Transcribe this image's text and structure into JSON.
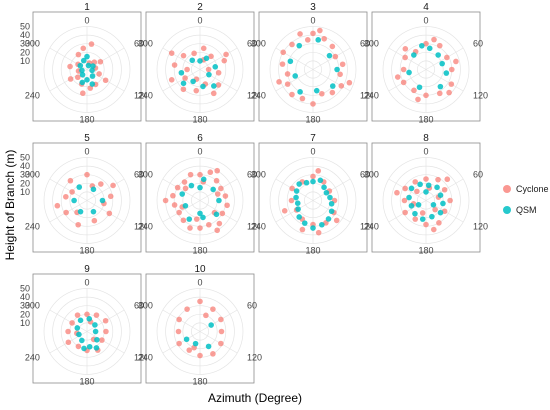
{
  "chart_data": {
    "type": "scatter",
    "coordinate_system": "polar",
    "xlabel": "Azimuth (Degree)",
    "ylabel": "Height of Branch (m)",
    "angle_ticks": [
      "0",
      "60",
      "120",
      "180",
      "240",
      "300"
    ],
    "radial_ticks": [
      "10",
      "20",
      "30",
      "40",
      "50"
    ],
    "radial_range": [
      0,
      50
    ],
    "legend": [
      {
        "name": "Cyclone",
        "color": "#F8766D"
      },
      {
        "name": "QSM",
        "color": "#00BFC4"
      }
    ],
    "panels": [
      {
        "label": "1",
        "cyclone": [
          [
            20,
            8
          ],
          [
            45,
            12
          ],
          [
            80,
            10
          ],
          [
            110,
            15
          ],
          [
            150,
            20
          ],
          [
            170,
            22
          ],
          [
            200,
            18
          ],
          [
            230,
            14
          ],
          [
            260,
            10
          ],
          [
            300,
            12
          ],
          [
            330,
            20
          ],
          [
            350,
            25
          ],
          [
            10,
            30
          ],
          [
            120,
            25
          ],
          [
            190,
            28
          ],
          [
            240,
            22
          ],
          [
            60,
            18
          ],
          [
            280,
            20
          ]
        ],
        "qsm": [
          [
            20,
            5
          ],
          [
            60,
            8
          ],
          [
            100,
            6
          ],
          [
            140,
            10
          ],
          [
            180,
            12
          ],
          [
            220,
            8
          ],
          [
            260,
            6
          ],
          [
            300,
            9
          ],
          [
            340,
            11
          ],
          [
            0,
            15
          ],
          [
            160,
            18
          ],
          [
            200,
            16
          ]
        ]
      },
      {
        "label": "2",
        "cyclone": [
          [
            10,
            25
          ],
          [
            40,
            20
          ],
          [
            70,
            30
          ],
          [
            100,
            22
          ],
          [
            130,
            28
          ],
          [
            160,
            18
          ],
          [
            190,
            25
          ],
          [
            220,
            30
          ],
          [
            250,
            35
          ],
          [
            280,
            30
          ],
          [
            310,
            25
          ],
          [
            340,
            20
          ],
          [
            20,
            12
          ],
          [
            90,
            10
          ],
          [
            200,
            12
          ],
          [
            270,
            15
          ],
          [
            60,
            35
          ],
          [
            300,
            38
          ],
          [
            150,
            32
          ],
          [
            240,
            20
          ]
        ],
        "qsm": [
          [
            30,
            15
          ],
          [
            80,
            18
          ],
          [
            120,
            12
          ],
          [
            170,
            20
          ],
          [
            210,
            16
          ],
          [
            260,
            22
          ],
          [
            320,
            14
          ],
          [
            0,
            10
          ],
          [
            140,
            25
          ],
          [
            230,
            25
          ]
        ]
      },
      {
        "label": "3",
        "cyclone": [
          [
            0,
            42
          ],
          [
            20,
            38
          ],
          [
            40,
            35
          ],
          [
            60,
            30
          ],
          [
            80,
            35
          ],
          [
            100,
            32
          ],
          [
            120,
            38
          ],
          [
            140,
            35
          ],
          [
            160,
            30
          ],
          [
            180,
            40
          ],
          [
            200,
            36
          ],
          [
            220,
            38
          ],
          [
            240,
            34
          ],
          [
            260,
            30
          ],
          [
            280,
            36
          ],
          [
            300,
            40
          ],
          [
            320,
            38
          ],
          [
            340,
            44
          ],
          [
            10,
            46
          ],
          [
            350,
            35
          ],
          [
            110,
            45
          ],
          [
            250,
            42
          ]
        ],
        "qsm": [
          [
            10,
            35
          ],
          [
            50,
            25
          ],
          [
            90,
            28
          ],
          [
            130,
            30
          ],
          [
            170,
            25
          ],
          [
            210,
            30
          ],
          [
            250,
            22
          ],
          [
            290,
            28
          ],
          [
            330,
            32
          ]
        ]
      },
      {
        "label": "4",
        "cyclone": [
          [
            0,
            30
          ],
          [
            30,
            32
          ],
          [
            60,
            28
          ],
          [
            90,
            30
          ],
          [
            120,
            34
          ],
          [
            150,
            32
          ],
          [
            180,
            30
          ],
          [
            210,
            28
          ],
          [
            240,
            30
          ],
          [
            270,
            26
          ],
          [
            300,
            28
          ],
          [
            330,
            24
          ],
          [
            15,
            36
          ],
          [
            75,
            36
          ],
          [
            135,
            38
          ],
          [
            195,
            36
          ],
          [
            255,
            34
          ],
          [
            315,
            34
          ]
        ],
        "qsm": [
          [
            10,
            25
          ],
          [
            40,
            22
          ],
          [
            70,
            20
          ],
          [
            100,
            24
          ],
          [
            140,
            26
          ],
          [
            200,
            22
          ],
          [
            260,
            20
          ],
          [
            320,
            22
          ],
          [
            350,
            28
          ]
        ]
      },
      {
        "label": "5",
        "cyclone": [
          [
            0,
            30
          ],
          [
            40,
            25
          ],
          [
            80,
            28
          ],
          [
            120,
            30
          ],
          [
            160,
            25
          ],
          [
            200,
            30
          ],
          [
            240,
            28
          ],
          [
            280,
            25
          ],
          [
            320,
            30
          ],
          [
            20,
            18
          ],
          [
            100,
            20
          ],
          [
            220,
            18
          ],
          [
            300,
            20
          ],
          [
            60,
            35
          ],
          [
            260,
            35
          ]
        ],
        "qsm": [
          [
            30,
            15
          ],
          [
            90,
            18
          ],
          [
            150,
            15
          ],
          [
            210,
            15
          ],
          [
            270,
            15
          ],
          [
            330,
            18
          ]
        ]
      },
      {
        "label": "6",
        "cyclone": [
          [
            0,
            30
          ],
          [
            20,
            35
          ],
          [
            40,
            30
          ],
          [
            60,
            28
          ],
          [
            80,
            30
          ],
          [
            100,
            32
          ],
          [
            120,
            30
          ],
          [
            140,
            35
          ],
          [
            160,
            30
          ],
          [
            180,
            32
          ],
          [
            200,
            34
          ],
          [
            220,
            30
          ],
          [
            240,
            28
          ],
          [
            260,
            30
          ],
          [
            280,
            32
          ],
          [
            300,
            30
          ],
          [
            320,
            28
          ],
          [
            340,
            32
          ],
          [
            10,
            22
          ],
          [
            70,
            22
          ],
          [
            130,
            22
          ],
          [
            190,
            22
          ],
          [
            250,
            22
          ],
          [
            310,
            22
          ],
          [
            30,
            40
          ],
          [
            150,
            40
          ],
          [
            270,
            40
          ]
        ],
        "qsm": [
          [
            10,
            25
          ],
          [
            50,
            20
          ],
          [
            90,
            22
          ],
          [
            130,
            25
          ],
          [
            170,
            20
          ],
          [
            210,
            25
          ],
          [
            250,
            18
          ],
          [
            290,
            22
          ],
          [
            330,
            20
          ],
          [
            0,
            15
          ],
          [
            180,
            15
          ]
        ]
      },
      {
        "label": "7",
        "cyclone": [
          [
            0,
            28
          ],
          [
            30,
            25
          ],
          [
            60,
            22
          ],
          [
            90,
            25
          ],
          [
            120,
            28
          ],
          [
            150,
            30
          ],
          [
            180,
            28
          ],
          [
            210,
            25
          ],
          [
            240,
            22
          ],
          [
            270,
            25
          ],
          [
            300,
            28
          ],
          [
            330,
            25
          ],
          [
            10,
            35
          ],
          [
            130,
            36
          ],
          [
            250,
            35
          ],
          [
            170,
            38
          ],
          [
            200,
            36
          ]
        ],
        "qsm": [
          [
            0,
            22
          ],
          [
            20,
            25
          ],
          [
            40,
            20
          ],
          [
            60,
            18
          ],
          [
            80,
            20
          ],
          [
            100,
            22
          ],
          [
            120,
            25
          ],
          [
            140,
            28
          ],
          [
            160,
            30
          ],
          [
            180,
            32
          ],
          [
            200,
            28
          ],
          [
            220,
            25
          ],
          [
            240,
            20
          ],
          [
            260,
            18
          ],
          [
            280,
            20
          ],
          [
            300,
            22
          ],
          [
            320,
            25
          ],
          [
            340,
            22
          ]
        ]
      },
      {
        "label": "8",
        "cyclone": [
          [
            0,
            25
          ],
          [
            30,
            28
          ],
          [
            60,
            25
          ],
          [
            90,
            28
          ],
          [
            120,
            25
          ],
          [
            150,
            30
          ],
          [
            180,
            28
          ],
          [
            210,
            25
          ],
          [
            240,
            28
          ],
          [
            270,
            25
          ],
          [
            300,
            28
          ],
          [
            330,
            25
          ],
          [
            15,
            15
          ],
          [
            75,
            15
          ],
          [
            135,
            15
          ],
          [
            195,
            15
          ],
          [
            255,
            15
          ],
          [
            315,
            15
          ],
          [
            45,
            35
          ],
          [
            165,
            35
          ],
          [
            285,
            35
          ]
        ],
        "qsm": [
          [
            10,
            18
          ],
          [
            40,
            20
          ],
          [
            70,
            18
          ],
          [
            100,
            20
          ],
          [
            130,
            22
          ],
          [
            160,
            20
          ],
          [
            190,
            22
          ],
          [
            220,
            20
          ],
          [
            250,
            18
          ],
          [
            280,
            20
          ],
          [
            310,
            22
          ],
          [
            340,
            20
          ],
          [
            0,
            10
          ],
          [
            120,
            10
          ],
          [
            240,
            10
          ]
        ]
      },
      {
        "label": "9",
        "cyclone": [
          [
            0,
            20
          ],
          [
            30,
            22
          ],
          [
            60,
            25
          ],
          [
            90,
            22
          ],
          [
            120,
            20
          ],
          [
            150,
            25
          ],
          [
            180,
            22
          ],
          [
            210,
            20
          ],
          [
            240,
            25
          ],
          [
            270,
            22
          ],
          [
            300,
            20
          ],
          [
            330,
            22
          ],
          [
            20,
            12
          ],
          [
            140,
            12
          ],
          [
            260,
            12
          ]
        ],
        "qsm": [
          [
            10,
            15
          ],
          [
            50,
            12
          ],
          [
            90,
            10
          ],
          [
            130,
            15
          ],
          [
            170,
            18
          ],
          [
            210,
            12
          ],
          [
            250,
            10
          ],
          [
            290,
            12
          ],
          [
            330,
            15
          ],
          [
            150,
            22
          ],
          [
            190,
            20
          ]
        ]
      },
      {
        "label": "10",
        "cyclone": [
          [
            0,
            35
          ],
          [
            30,
            30
          ],
          [
            60,
            28
          ],
          [
            90,
            25
          ],
          [
            120,
            28
          ],
          [
            150,
            30
          ],
          [
            180,
            28
          ],
          [
            210,
            25
          ],
          [
            240,
            28
          ],
          [
            270,
            25
          ],
          [
            300,
            28
          ],
          [
            330,
            30
          ],
          [
            20,
            20
          ],
          [
            200,
            20
          ]
        ],
        "qsm": [
          [
            60,
            15
          ],
          [
            150,
            20
          ],
          [
            200,
            15
          ],
          [
            240,
            18
          ]
        ]
      }
    ]
  }
}
